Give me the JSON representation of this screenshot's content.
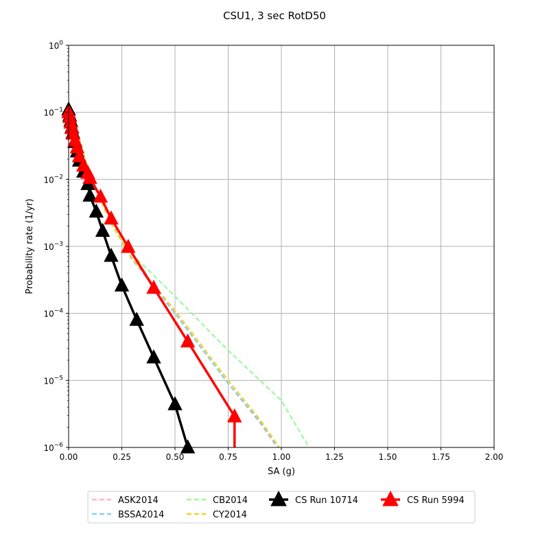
{
  "chart_data": {
    "type": "line",
    "title": "CSU1, 3 sec RotD50",
    "xlabel": "SA (g)",
    "ylabel": "Probability rate (1/yr)",
    "xlim": [
      0,
      2
    ],
    "ylim": [
      1e-06,
      1
    ],
    "yscale": "log",
    "grid": true,
    "legend_position": "bottom-center",
    "x_ticks": [
      {
        "value": 0,
        "label": "0.00"
      },
      {
        "value": 0.25,
        "label": "0.25"
      },
      {
        "value": 0.5,
        "label": "0.50"
      },
      {
        "value": 0.75,
        "label": "0.75"
      },
      {
        "value": 1.0,
        "label": "1.00"
      },
      {
        "value": 1.25,
        "label": "1.25"
      },
      {
        "value": 1.5,
        "label": "1.50"
      },
      {
        "value": 1.75,
        "label": "1.75"
      },
      {
        "value": 2.0,
        "label": "2.00"
      }
    ],
    "y_ticks": [
      {
        "value": 1e-06,
        "base": "10",
        "exp": "−6"
      },
      {
        "value": 1e-05,
        "base": "10",
        "exp": "−5"
      },
      {
        "value": 0.0001,
        "base": "10",
        "exp": "−4"
      },
      {
        "value": 0.001,
        "base": "10",
        "exp": "−3"
      },
      {
        "value": 0.01,
        "base": "10",
        "exp": "−2"
      },
      {
        "value": 0.1,
        "base": "10",
        "exp": "−1"
      },
      {
        "value": 1,
        "base": "10",
        "exp": "0"
      }
    ],
    "series": [
      {
        "name": "ASK2014",
        "color": "#ffb6c1",
        "style": "dashed",
        "marker": "none",
        "x": [
          0.0,
          0.05,
          0.1,
          0.2,
          0.3,
          0.5,
          0.75,
          0.9,
          0.98
        ],
        "y": [
          0.11,
          0.04,
          0.011,
          0.0022,
          0.00063,
          0.0001,
          9e-06,
          2.3e-06,
          1e-06
        ]
      },
      {
        "name": "BSSA2014",
        "color": "#87ceeb",
        "style": "dashed",
        "marker": "none",
        "x": [
          0.0,
          0.05,
          0.1,
          0.2,
          0.3,
          0.5,
          0.75,
          0.9,
          0.985
        ],
        "y": [
          0.11,
          0.04,
          0.011,
          0.0022,
          0.00063,
          0.0001,
          9e-06,
          2.4e-06,
          1e-06
        ]
      },
      {
        "name": "CB2014",
        "color": "#98fb98",
        "style": "dashed",
        "marker": "none",
        "x": [
          0.0,
          0.05,
          0.1,
          0.2,
          0.3,
          0.5,
          0.75,
          1.0,
          1.13
        ],
        "y": [
          0.11,
          0.04,
          0.011,
          0.0022,
          0.00075,
          0.00018,
          2.8e-05,
          5e-06,
          1e-06
        ]
      },
      {
        "name": "CY2014",
        "color": "#f6d022",
        "style": "dashed",
        "marker": "none",
        "x": [
          0.0,
          0.05,
          0.1,
          0.2,
          0.3,
          0.5,
          0.75,
          0.9,
          0.99
        ],
        "y": [
          0.11,
          0.04,
          0.011,
          0.0022,
          0.00065,
          0.00011,
          1e-05,
          2.6e-06,
          1e-06
        ]
      },
      {
        "name": "CS Run 10714",
        "color": "#000000",
        "style": "solid",
        "marker": "triangle",
        "x": [
          0.0,
          0.005,
          0.01,
          0.015,
          0.02,
          0.03,
          0.04,
          0.05,
          0.07,
          0.09,
          0.1,
          0.13,
          0.16,
          0.2,
          0.25,
          0.32,
          0.4,
          0.5,
          0.56
        ],
        "y": [
          0.11,
          0.09,
          0.075,
          0.06,
          0.05,
          0.036,
          0.026,
          0.019,
          0.013,
          0.0085,
          0.0057,
          0.0033,
          0.0017,
          0.00072,
          0.00026,
          8e-05,
          2.2e-05,
          4.4e-06,
          1e-06
        ]
      },
      {
        "name": "CS Run 5994",
        "color": "#ff0000",
        "style": "solid",
        "marker": "triangle",
        "x": [
          0.0,
          0.005,
          0.01,
          0.015,
          0.02,
          0.03,
          0.04,
          0.05,
          0.07,
          0.09,
          0.1,
          0.15,
          0.2,
          0.28,
          0.4,
          0.56,
          0.78,
          0.78
        ],
        "y": [
          0.1,
          0.085,
          0.07,
          0.058,
          0.048,
          0.038,
          0.03,
          0.022,
          0.016,
          0.0125,
          0.0105,
          0.0055,
          0.0026,
          0.00098,
          0.00024,
          3.8e-05,
          2.9e-06,
          1e-06
        ],
        "marker_points": 17
      }
    ]
  }
}
